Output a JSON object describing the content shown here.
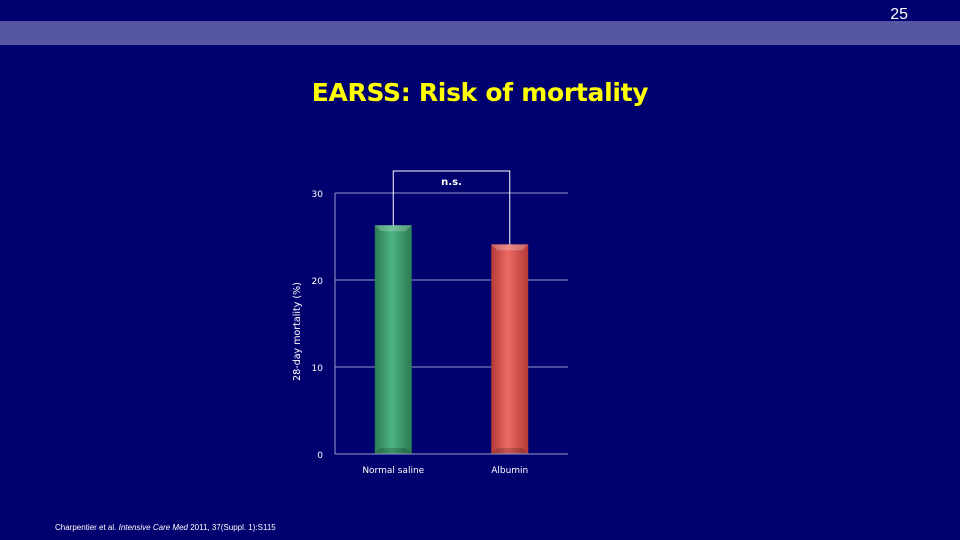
{
  "slide": {
    "number": "25",
    "title": "EARSS: Risk of mortality",
    "citation": {
      "authors": "Charpentier et al. ",
      "journal": "Intensive Care Med",
      "details": " 2011, 37(Suppl. 1):S115"
    }
  },
  "colors": {
    "background": "#00006e",
    "band": "#5656a4",
    "title": "#ffff00",
    "normal_saline": "#3a9a6a",
    "albumin": "#d9504c"
  },
  "chart_data": {
    "type": "bar",
    "categories": [
      "Normal saline",
      "Albumin"
    ],
    "values": [
      26.3,
      24.1
    ],
    "ylabel": "28-day mortality (%)",
    "ylim": [
      0,
      30
    ],
    "yticks": [
      0,
      10,
      20,
      30
    ],
    "grid": true,
    "legend": "none",
    "annotation": "n.s."
  }
}
